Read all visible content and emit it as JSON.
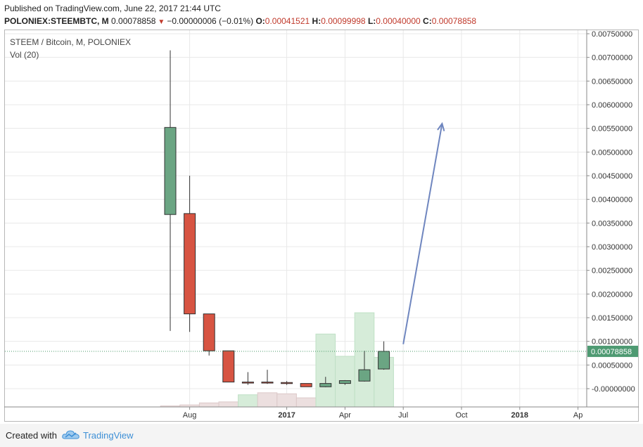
{
  "header": {
    "published": "Published on TradingView.com, June 22, 2017 21:44 UTC",
    "symbol": "POLONIEX:STEEMBTC, M",
    "last": "0.00078858",
    "change": "−0.00000006 (−0.01%)",
    "o_label": "O:",
    "o_value": "0.00041521",
    "h_label": "H:",
    "h_value": "0.00099998",
    "l_label": "L:",
    "l_value": "0.00040000",
    "c_label": "C:",
    "c_value": "0.00078858"
  },
  "chart_data": {
    "type": "candlestick",
    "title": "STEEM / Bitcoin, M, POLONIEX",
    "volume_label": "Vol (20)",
    "y_ticks": [
      "0.00750000",
      "0.00700000",
      "0.00650000",
      "0.00600000",
      "0.00550000",
      "0.00500000",
      "0.00450000",
      "0.00400000",
      "0.00350000",
      "0.00300000",
      "0.00250000",
      "0.00200000",
      "0.00150000",
      "0.00100000",
      "0.00050000",
      "-0.00000000"
    ],
    "ylim": [
      -0.0002,
      0.0077
    ],
    "x_ticks": [
      "Aug",
      "2017",
      "Apr",
      "Jul",
      "Oct",
      "2018",
      "Ap"
    ],
    "last_price_label": "0.00078858",
    "last_price": 0.00078858,
    "candles": [
      {
        "month": "2016-07",
        "open": 0.00368,
        "high": 0.00715,
        "low": 0.00122,
        "close": 0.00552
      },
      {
        "month": "2016-08",
        "open": 0.0037,
        "high": 0.0045,
        "low": 0.0012,
        "close": 0.00158
      },
      {
        "month": "2016-09",
        "open": 0.00158,
        "high": 0.00158,
        "low": 0.0007,
        "close": 0.0008
      },
      {
        "month": "2016-10",
        "open": 0.0008,
        "high": 0.0008,
        "low": 0.00014,
        "close": 0.00014
      },
      {
        "month": "2016-11",
        "open": 0.00014,
        "high": 0.00035,
        "low": 8e-05,
        "close": 0.00013
      },
      {
        "month": "2016-12",
        "open": 0.00014,
        "high": 0.0004,
        "low": 0.0001,
        "close": 0.00012
      },
      {
        "month": "2017-01",
        "open": 0.00013,
        "high": 0.00016,
        "low": 8e-05,
        "close": 0.00011
      },
      {
        "month": "2017-02",
        "open": 0.00011,
        "high": 0.00011,
        "low": 4e-05,
        "close": 4e-05
      },
      {
        "month": "2017-03",
        "open": 4e-05,
        "high": 0.00025,
        "low": 3e-05,
        "close": 0.00011
      },
      {
        "month": "2017-04",
        "open": 0.00011,
        "high": 0.00018,
        "low": 8e-05,
        "close": 0.00017
      },
      {
        "month": "2017-05",
        "open": 0.00016,
        "high": 0.0008,
        "low": 0.00015,
        "close": 0.0004
      },
      {
        "month": "2017-06",
        "open": 0.00041521,
        "high": 0.00099998,
        "low": 0.0004,
        "close": 0.00078858
      }
    ],
    "volumes": [
      {
        "month": "2016-07",
        "value": 1,
        "direction": "down"
      },
      {
        "month": "2016-08",
        "value": 2,
        "direction": "down"
      },
      {
        "month": "2016-09",
        "value": 4,
        "direction": "down"
      },
      {
        "month": "2016-10",
        "value": 5,
        "direction": "down"
      },
      {
        "month": "2016-11",
        "value": 12,
        "direction": "up"
      },
      {
        "month": "2016-12",
        "value": 14,
        "direction": "down"
      },
      {
        "month": "2017-01",
        "value": 13,
        "direction": "down"
      },
      {
        "month": "2017-02",
        "value": 9,
        "direction": "down"
      },
      {
        "month": "2017-03",
        "value": 72,
        "direction": "up"
      },
      {
        "month": "2017-04",
        "value": 50,
        "direction": "up"
      },
      {
        "month": "2017-05",
        "value": 93,
        "direction": "up"
      },
      {
        "month": "2017-06",
        "value": 49,
        "direction": "up"
      }
    ],
    "annotation": {
      "type": "arrow",
      "from": {
        "month": "2017-07",
        "price": 0.00094
      },
      "to": {
        "month": "2017-09",
        "price": 0.0056
      }
    },
    "colors": {
      "up": "#6ba583",
      "down": "#d75442",
      "volume_up": "#d6ecd9",
      "volume_down": "#ecdfdf",
      "arrow": "#6f86bf",
      "grid": "#e8e8e8",
      "last_price_line": "#4a9a6a"
    },
    "grid": true
  },
  "footer": {
    "created_with": "Created with",
    "brand": "TradingView"
  }
}
